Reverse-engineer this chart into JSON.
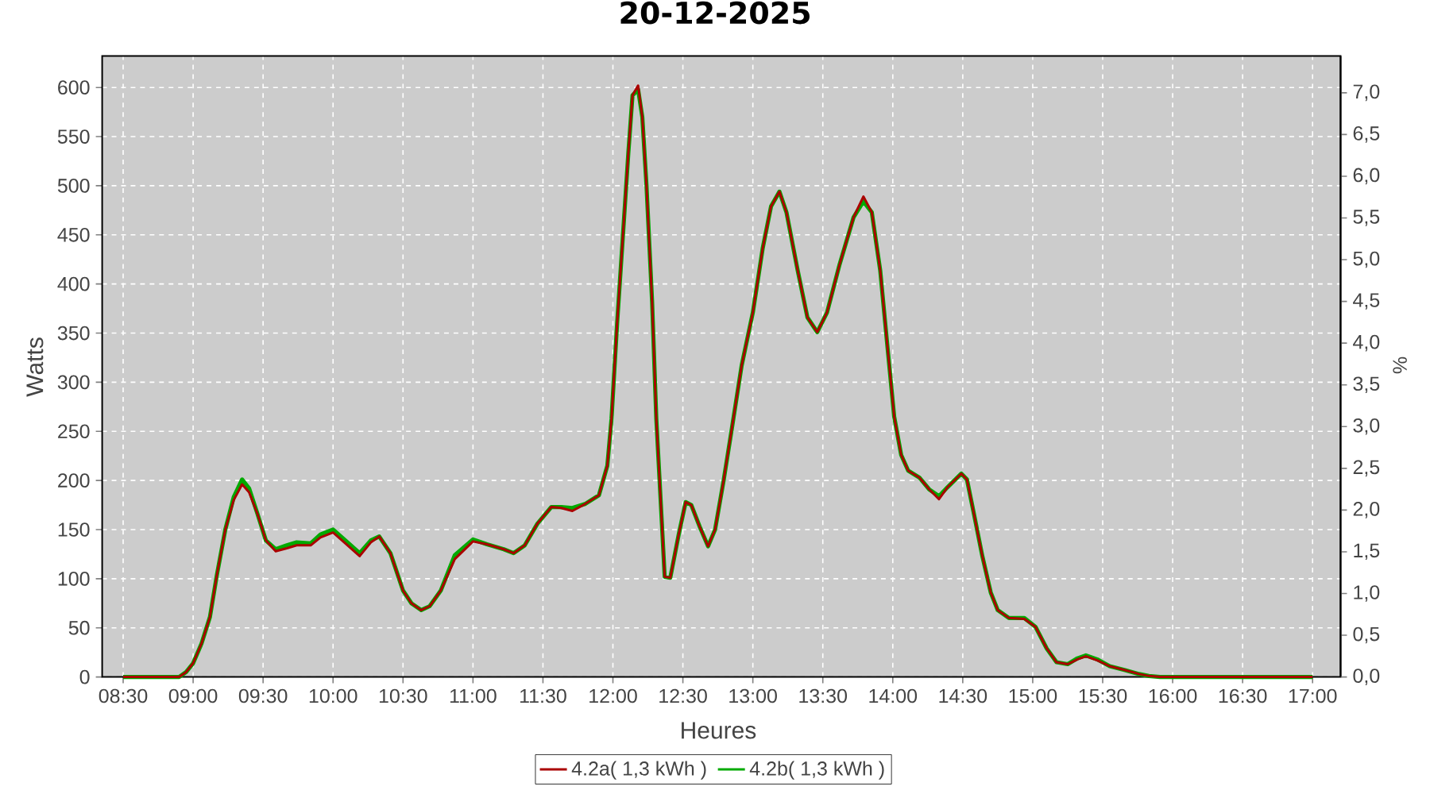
{
  "chart_data": {
    "type": "line",
    "title": "20-12-2025",
    "xlabel": "Heures",
    "ylabel": "Watts",
    "y2label": "%",
    "x": [
      8.5,
      8.9,
      8.95,
      9.0,
      9.06,
      9.12,
      9.17,
      9.23,
      9.29,
      9.35,
      9.4,
      9.46,
      9.52,
      9.59,
      9.67,
      9.74,
      9.84,
      9.91,
      10.0,
      10.08,
      10.19,
      10.27,
      10.33,
      10.41,
      10.5,
      10.56,
      10.63,
      10.69,
      10.77,
      10.87,
      11.0,
      11.1,
      11.22,
      11.29,
      11.37,
      11.46,
      11.56,
      11.63,
      11.71,
      11.8,
      11.9,
      11.96,
      11.99,
      12.03,
      12.07,
      12.11,
      12.14,
      12.18,
      12.21,
      12.24,
      12.28,
      12.31,
      12.35,
      12.37,
      12.41,
      12.47,
      12.52,
      12.56,
      12.62,
      12.68,
      12.73,
      12.79,
      12.85,
      12.92,
      13.0,
      13.07,
      13.13,
      13.19,
      13.24,
      13.32,
      13.39,
      13.46,
      13.53,
      13.62,
      13.72,
      13.79,
      13.85,
      13.91,
      13.96,
      14.01,
      14.06,
      14.11,
      14.19,
      14.26,
      14.33,
      14.39,
      14.49,
      14.53,
      14.58,
      14.64,
      14.7,
      14.75,
      14.83,
      14.94,
      15.02,
      15.1,
      15.17,
      15.25,
      15.32,
      15.38,
      15.46,
      15.55,
      15.66,
      15.76,
      15.83,
      15.91,
      17.0
    ],
    "series": [
      {
        "name": "4.2a( 1,3 kWh )",
        "color": "#aa0000",
        "values": [
          0,
          0,
          5,
          14,
          34,
          61,
          104,
          150,
          180,
          196,
          188,
          166,
          139,
          128,
          131,
          134,
          134,
          142,
          147,
          137,
          123,
          137,
          143,
          126,
          88,
          75,
          68,
          72,
          88,
          120,
          138,
          135,
          130,
          126,
          134,
          156,
          173,
          172,
          169,
          176,
          185,
          215,
          263,
          360,
          446,
          533,
          592,
          602,
          570,
          500,
          382,
          263,
          156,
          102,
          101,
          145,
          178,
          175,
          153,
          133,
          150,
          199,
          253,
          317,
          371,
          436,
          479,
          494,
          473,
          414,
          366,
          351,
          371,
          420,
          468,
          489,
          473,
          414,
          339,
          265,
          226,
          210,
          203,
          191,
          181,
          193,
          207,
          201,
          166,
          123,
          86,
          68,
          60,
          59,
          51,
          29,
          15,
          13,
          18,
          21,
          17,
          11,
          7,
          3,
          1,
          0,
          0
        ]
      },
      {
        "name": "4.2b( 1,3 kWh )",
        "color": "#00aa00",
        "values": [
          0,
          0,
          5,
          14,
          34,
          61,
          104,
          150,
          183,
          201,
          192,
          166,
          139,
          130,
          134,
          137,
          136,
          145,
          150,
          140,
          126,
          139,
          143,
          126,
          88,
          75,
          68,
          72,
          88,
          124,
          140,
          135,
          130,
          126,
          134,
          156,
          173,
          173,
          172,
          176,
          185,
          215,
          263,
          360,
          446,
          533,
          592,
          598,
          570,
          500,
          382,
          263,
          156,
          102,
          101,
          145,
          178,
          175,
          153,
          133,
          150,
          199,
          253,
          317,
          371,
          436,
          479,
          494,
          473,
          414,
          366,
          351,
          371,
          420,
          468,
          484,
          473,
          414,
          339,
          265,
          226,
          210,
          203,
          191,
          184,
          193,
          207,
          201,
          166,
          123,
          86,
          68,
          60,
          60,
          51,
          29,
          15,
          13,
          19,
          22,
          18,
          11,
          7,
          3,
          1,
          0,
          0
        ]
      }
    ],
    "xlim": [
      8.35,
      17.2
    ],
    "xticks": [
      {
        "value": 8.5,
        "label": "08:30"
      },
      {
        "value": 9,
        "label": "09:00"
      },
      {
        "value": 9.5,
        "label": "09:30"
      },
      {
        "value": 10,
        "label": "10:00"
      },
      {
        "value": 10.5,
        "label": "10:30"
      },
      {
        "value": 11,
        "label": "11:00"
      },
      {
        "value": 11.5,
        "label": "11:30"
      },
      {
        "value": 12,
        "label": "12:00"
      },
      {
        "value": 12.5,
        "label": "12:30"
      },
      {
        "value": 13,
        "label": "13:00"
      },
      {
        "value": 13.5,
        "label": "13:30"
      },
      {
        "value": 14,
        "label": "14:00"
      },
      {
        "value": 14.5,
        "label": "14:30"
      },
      {
        "value": 15,
        "label": "15:00"
      },
      {
        "value": 15.5,
        "label": "15:30"
      },
      {
        "value": 16,
        "label": "16:00"
      },
      {
        "value": 16.5,
        "label": "16:30"
      },
      {
        "value": 17,
        "label": "17:00"
      }
    ],
    "ylim": [
      0,
      632
    ],
    "yticks": [
      0,
      50,
      100,
      150,
      200,
      250,
      300,
      350,
      400,
      450,
      500,
      550,
      600
    ],
    "y2lim": [
      0,
      7.44
    ],
    "y2ticks": [
      {
        "value": 0,
        "label": "0,0"
      },
      {
        "value": 0.5,
        "label": "0,5"
      },
      {
        "value": 1,
        "label": "1,0"
      },
      {
        "value": 1.5,
        "label": "1,5"
      },
      {
        "value": 2,
        "label": "2,0"
      },
      {
        "value": 2.5,
        "label": "2,5"
      },
      {
        "value": 3,
        "label": "3,0"
      },
      {
        "value": 3.5,
        "label": "3,5"
      },
      {
        "value": 4,
        "label": "4,0"
      },
      {
        "value": 4.5,
        "label": "4,5"
      },
      {
        "value": 5,
        "label": "5,0"
      },
      {
        "value": 5.5,
        "label": "5,5"
      },
      {
        "value": 6,
        "label": "6,0"
      },
      {
        "value": 6.5,
        "label": "6,5"
      },
      {
        "value": 7,
        "label": "7,0"
      }
    ],
    "grid": true,
    "legend": "bottom",
    "marker": "none",
    "line_style": "solid"
  }
}
